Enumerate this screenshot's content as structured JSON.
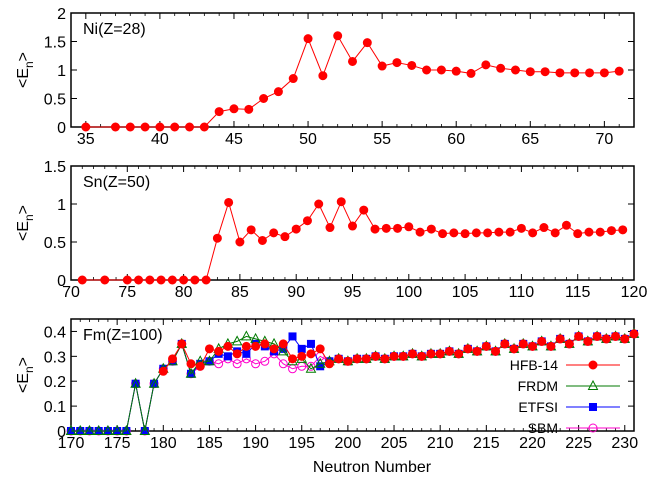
{
  "figure": {
    "xlabel": "Neutron Number"
  },
  "chart_data": [
    {
      "type": "line",
      "panel_label": "Ni(Z=28)",
      "ylabel_main": "<E",
      "ylabel_sub": "n",
      "ylabel_end": ">",
      "xlim": [
        34,
        72
      ],
      "ylim": [
        0,
        2
      ],
      "xticks": [
        35,
        40,
        45,
        50,
        55,
        60,
        65,
        70
      ],
      "yticks": [
        0,
        0.5,
        1,
        1.5,
        2
      ],
      "ytick_labels": [
        "0",
        "0.5",
        "1",
        "1.5",
        "2"
      ],
      "series": [
        {
          "color": "#ff0000",
          "marker": "circle-filled",
          "x": [
            35,
            37,
            38,
            39,
            40,
            41,
            42,
            43,
            44,
            45,
            46,
            47,
            48,
            49,
            50,
            51,
            52,
            53,
            54,
            55,
            56,
            57,
            58,
            59,
            60,
            61,
            62,
            63,
            64,
            65,
            66,
            67,
            68,
            69,
            70,
            71
          ],
          "y": [
            0,
            0,
            0,
            0,
            0,
            0,
            0,
            0,
            0.27,
            0.32,
            0.31,
            0.5,
            0.62,
            0.85,
            1.55,
            0.9,
            1.6,
            1.15,
            1.48,
            1.07,
            1.13,
            1.08,
            1.0,
            1.0,
            0.98,
            0.94,
            1.09,
            1.03,
            1.0,
            0.97,
            0.97,
            0.95,
            0.95,
            0.95,
            0.95,
            0.98
          ]
        }
      ]
    },
    {
      "type": "line",
      "panel_label": "Sn(Z=50)",
      "ylabel_main": "<E",
      "ylabel_sub": "n",
      "ylabel_end": ">",
      "xlim": [
        70,
        120
      ],
      "ylim": [
        0,
        1.5
      ],
      "xticks": [
        70,
        75,
        80,
        85,
        90,
        95,
        100,
        105,
        110,
        115,
        120
      ],
      "yticks": [
        0,
        0.5,
        1,
        1.5
      ],
      "ytick_labels": [
        "0",
        "0.5",
        "1",
        "1.5"
      ],
      "series": [
        {
          "color": "#ff0000",
          "marker": "circle-filled",
          "x": [
            71,
            73,
            75,
            76,
            77,
            78,
            79,
            80,
            81,
            82,
            83,
            84,
            85,
            86,
            87,
            88,
            89,
            90,
            91,
            92,
            93,
            94,
            95,
            96,
            97,
            98,
            99,
            100,
            101,
            102,
            103,
            104,
            105,
            106,
            107,
            108,
            109,
            110,
            111,
            112,
            113,
            114,
            115,
            116,
            117,
            118,
            119
          ],
          "y": [
            0,
            0,
            0,
            0,
            0,
            0,
            0,
            0,
            0,
            0,
            0.55,
            1.02,
            0.5,
            0.66,
            0.52,
            0.62,
            0.57,
            0.67,
            0.78,
            1.0,
            0.69,
            1.03,
            0.71,
            0.92,
            0.67,
            0.68,
            0.68,
            0.7,
            0.63,
            0.67,
            0.61,
            0.62,
            0.61,
            0.62,
            0.62,
            0.63,
            0.63,
            0.68,
            0.62,
            0.69,
            0.62,
            0.72,
            0.61,
            0.63,
            0.63,
            0.65,
            0.66
          ]
        }
      ]
    },
    {
      "type": "line",
      "panel_label": "Fm(Z=100)",
      "ylabel_main": "<E",
      "ylabel_sub": "n",
      "ylabel_end": ">",
      "xlim": [
        170,
        231
      ],
      "ylim": [
        0,
        0.45
      ],
      "xticks": [
        170,
        175,
        180,
        185,
        190,
        195,
        200,
        205,
        210,
        215,
        220,
        225,
        230
      ],
      "yticks": [
        0,
        0.1,
        0.2,
        0.3,
        0.4
      ],
      "ytick_labels": [
        "0",
        "0.1",
        "0.2",
        "0.3",
        "0.4"
      ],
      "legend_position": "middle-right",
      "series": [
        {
          "name": "HFB-14",
          "color": "#ff0000",
          "marker": "circle-filled",
          "x": [
            180,
            181,
            182,
            183,
            184,
            185,
            186,
            187,
            188,
            189,
            190,
            191,
            192,
            193,
            194,
            195,
            196,
            197,
            198,
            199,
            200,
            201,
            202,
            203,
            204,
            205,
            206,
            207,
            208,
            209,
            210,
            211,
            212,
            213,
            214,
            215,
            216,
            217,
            218,
            219,
            220,
            221,
            222,
            223,
            224,
            225,
            226,
            227,
            228,
            229,
            230,
            231
          ],
          "y": [
            0.24,
            0.29,
            0.35,
            0.27,
            0.26,
            0.33,
            0.32,
            0.34,
            0.31,
            0.34,
            0.34,
            0.35,
            0.33,
            0.35,
            0.29,
            0.3,
            0.31,
            0.33,
            0.27,
            0.29,
            0.28,
            0.29,
            0.29,
            0.3,
            0.29,
            0.3,
            0.3,
            0.31,
            0.3,
            0.31,
            0.31,
            0.32,
            0.31,
            0.33,
            0.32,
            0.34,
            0.32,
            0.35,
            0.33,
            0.35,
            0.34,
            0.36,
            0.34,
            0.37,
            0.35,
            0.38,
            0.36,
            0.38,
            0.37,
            0.38,
            0.37,
            0.39
          ]
        },
        {
          "name": "FRDM",
          "color": "#007a00",
          "marker": "triangle-open",
          "x": [
            170,
            171,
            172,
            173,
            174,
            175,
            176,
            177,
            178,
            179,
            180,
            181,
            182,
            183,
            184,
            185,
            186,
            187,
            188,
            189,
            190,
            191,
            192,
            193,
            194,
            195,
            196,
            197,
            198,
            199,
            200,
            201,
            202,
            203,
            204,
            205,
            206,
            207,
            208,
            209,
            210,
            211,
            212,
            213,
            214,
            215,
            216,
            217,
            218,
            219,
            220,
            221,
            222,
            223,
            224,
            225,
            226,
            227,
            228,
            229,
            230,
            231
          ],
          "y": [
            0,
            0,
            0,
            0,
            0,
            0,
            0,
            0.19,
            0,
            0.19,
            0.25,
            0.28,
            0.35,
            0.23,
            0.28,
            0.28,
            0.33,
            0.35,
            0.36,
            0.38,
            0.37,
            0.36,
            0.35,
            0.32,
            0.28,
            0.29,
            0.25,
            0.27,
            0.28,
            0.29,
            0.28,
            0.29,
            0.29,
            0.3,
            0.29,
            0.3,
            0.3,
            0.31,
            0.3,
            0.31,
            0.31,
            0.32,
            0.31,
            0.33,
            0.32,
            0.34,
            0.32,
            0.35,
            0.33,
            0.35,
            0.34,
            0.36,
            0.34,
            0.37,
            0.35,
            0.38,
            0.36,
            0.38,
            0.37,
            0.38,
            0.37,
            0.39
          ]
        },
        {
          "name": "ETFSI",
          "color": "#0000ff",
          "marker": "square-filled",
          "x": [
            170,
            171,
            172,
            173,
            174,
            175,
            176,
            177,
            178,
            179,
            180,
            181,
            182,
            183,
            184,
            185,
            186,
            187,
            188,
            189,
            190,
            191,
            192,
            193,
            194,
            195,
            196,
            197,
            198,
            199,
            200,
            201,
            202,
            203,
            204,
            205,
            206,
            207,
            208,
            209,
            210,
            211,
            212,
            213,
            214,
            215,
            216,
            217,
            218,
            219,
            220,
            221,
            222,
            223,
            224,
            225,
            226,
            227,
            228,
            229,
            230,
            231
          ],
          "y": [
            0,
            0,
            0,
            0,
            0,
            0,
            0,
            0.19,
            0,
            0.19,
            0.25,
            0.28,
            0.35,
            0.23,
            0.27,
            0.28,
            0.31,
            0.3,
            0.32,
            0.31,
            0.35,
            0.34,
            0.32,
            0.33,
            0.38,
            0.33,
            0.35,
            0.26,
            0.28,
            0.29,
            0.28,
            0.29,
            0.29,
            0.3,
            0.29,
            0.3,
            0.3,
            0.31,
            0.3,
            0.31,
            0.31,
            0.32,
            0.31,
            0.33,
            0.32,
            0.34,
            0.32,
            0.35,
            0.33,
            0.35,
            0.34,
            0.36,
            0.34,
            0.37,
            0.35,
            0.38,
            0.36,
            0.38,
            0.37,
            0.38,
            0.37,
            0.39
          ]
        },
        {
          "name": "SBM",
          "color": "#ff00cc",
          "marker": "circle-open",
          "x": [
            170,
            171,
            172,
            173,
            174,
            175,
            176,
            177,
            178,
            179,
            180,
            181,
            182,
            183,
            184,
            185,
            186,
            187,
            188,
            189,
            190,
            191,
            192,
            193,
            194,
            195,
            196,
            197,
            198,
            199,
            200,
            201,
            202,
            203,
            204,
            205,
            206,
            207,
            208,
            209,
            210,
            211,
            212,
            213,
            214,
            215,
            216,
            217,
            218,
            219,
            220,
            221,
            222,
            223,
            224,
            225,
            226,
            227,
            228,
            229,
            230,
            231
          ],
          "y": [
            0,
            0,
            0,
            0,
            0,
            0,
            0,
            0.19,
            0,
            0.19,
            0.25,
            0.28,
            0.35,
            0.23,
            0.26,
            0.28,
            0.27,
            0.29,
            0.27,
            0.29,
            0.27,
            0.28,
            0.31,
            0.27,
            0.25,
            0.26,
            0.26,
            0.3,
            0.28,
            0.29,
            0.28,
            0.29,
            0.29,
            0.3,
            0.29,
            0.3,
            0.3,
            0.31,
            0.3,
            0.31,
            0.31,
            0.32,
            0.31,
            0.33,
            0.32,
            0.34,
            0.32,
            0.35,
            0.33,
            0.35,
            0.34,
            0.36,
            0.34,
            0.37,
            0.35,
            0.38,
            0.36,
            0.38,
            0.37,
            0.38,
            0.37,
            0.39
          ]
        }
      ]
    }
  ]
}
